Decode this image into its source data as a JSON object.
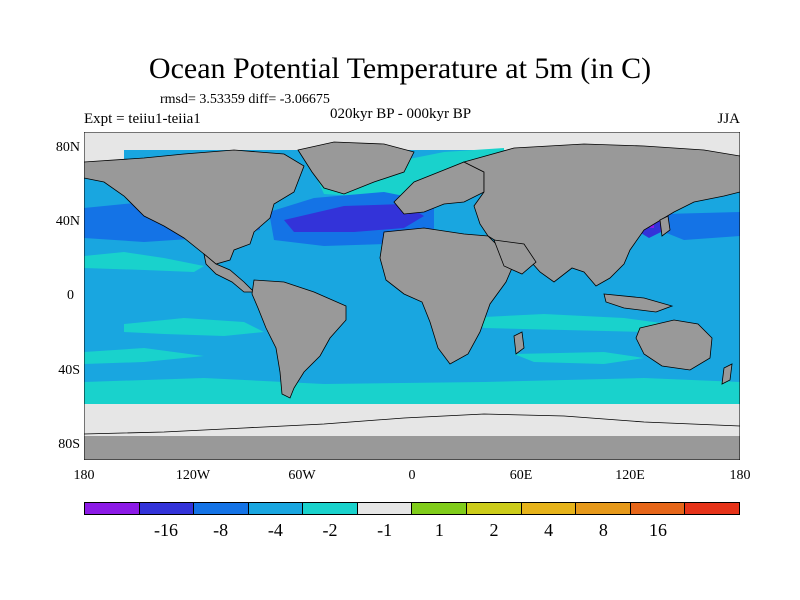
{
  "title": "Ocean Potential Temperature at 5m (in C)",
  "stats": "rmsd= 3.53359 diff= -3.06675",
  "experiment": "Expt = teiiu1-teiia1",
  "period": "020kyr BP - 000kyr BP",
  "season": "JJA",
  "lat_labels": [
    "80N",
    "40N",
    "0",
    "40S",
    "80S"
  ],
  "lon_labels": [
    "180",
    "120W",
    "60W",
    "0",
    "60E",
    "120E",
    "180"
  ],
  "colorbar": {
    "colors": [
      "#8c1ae6",
      "#3333d9",
      "#1473e6",
      "#19a6e0",
      "#19d2cc",
      "#e6e6e6",
      "#80cc1a",
      "#cccc1a",
      "#e6b31a",
      "#e6991a",
      "#e66619",
      "#e63319"
    ],
    "labels": [
      "-16",
      "-8",
      "-4",
      "-2",
      "-1",
      "1",
      "2",
      "4",
      "8",
      "16"
    ]
  },
  "map_colors": {
    "land": "#999999",
    "ocean_base": "#19a6e0",
    "cold": "#1473e6",
    "very_cold": "#3333d9",
    "coldest": "#8c1ae6",
    "mild": "#19d2cc",
    "ice": "#e6e6e6"
  }
}
